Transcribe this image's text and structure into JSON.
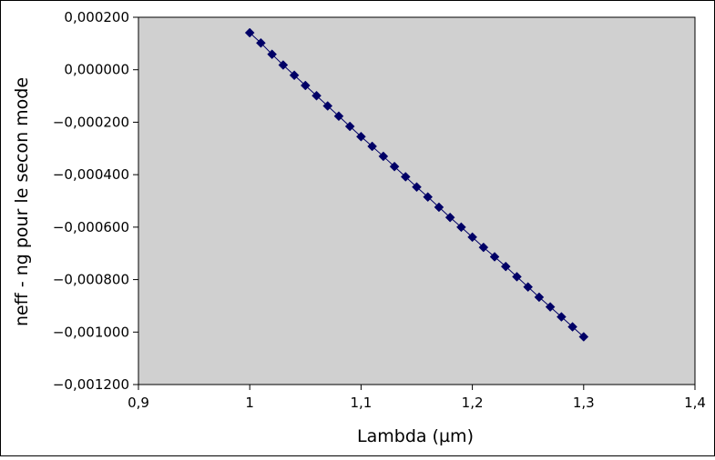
{
  "chart_data": {
    "type": "scatter",
    "xlabel": "Lambda (µm)",
    "ylabel": "neff - ng pour le secon mode",
    "xlim": [
      0.9,
      1.4
    ],
    "ylim": [
      -0.0012,
      0.0002
    ],
    "x_ticks": [
      0.9,
      1.0,
      1.1,
      1.2,
      1.3,
      1.4
    ],
    "x_tick_labels": [
      "0,9",
      "1",
      "1,1",
      "1,2",
      "1,3",
      "1,4"
    ],
    "y_ticks": [
      0.0002,
      0.0,
      -0.0002,
      -0.0004,
      -0.0006,
      -0.0008,
      -0.001,
      -0.0012
    ],
    "y_tick_labels": [
      "0,000200",
      "0,000000",
      "−0,000200",
      "−0,000400",
      "−0,000600",
      "−0,000800",
      "−0,001000",
      "−0,001200"
    ],
    "grid": false,
    "legend": "none",
    "series": [
      {
        "x": [
          1.0,
          1.01,
          1.02,
          1.03,
          1.04,
          1.05,
          1.06,
          1.07,
          1.08,
          1.09,
          1.1,
          1.11,
          1.12,
          1.13,
          1.14,
          1.15,
          1.16,
          1.17,
          1.18,
          1.19,
          1.2,
          1.21,
          1.22,
          1.23,
          1.24,
          1.25,
          1.26,
          1.27,
          1.28,
          1.29,
          1.3
        ],
        "values": [
          0.000141,
          0.000102,
          5.9e-05,
          1.8e-05,
          -2.1e-05,
          -6e-05,
          -9.9e-05,
          -0.000138,
          -0.000177,
          -0.000216,
          -0.000255,
          -0.000292,
          -0.00033,
          -0.000369,
          -0.000408,
          -0.000447,
          -0.000485,
          -0.000524,
          -0.000563,
          -0.0006,
          -0.000638,
          -0.000677,
          -0.000713,
          -0.00075,
          -0.000789,
          -0.000828,
          -0.000867,
          -0.000904,
          -0.000942,
          -0.00098,
          -0.001018
        ]
      }
    ],
    "colors": {
      "plot_background": "#d0d0d0",
      "marker": "#000066",
      "line": "#000066",
      "axis": "#000000"
    }
  }
}
